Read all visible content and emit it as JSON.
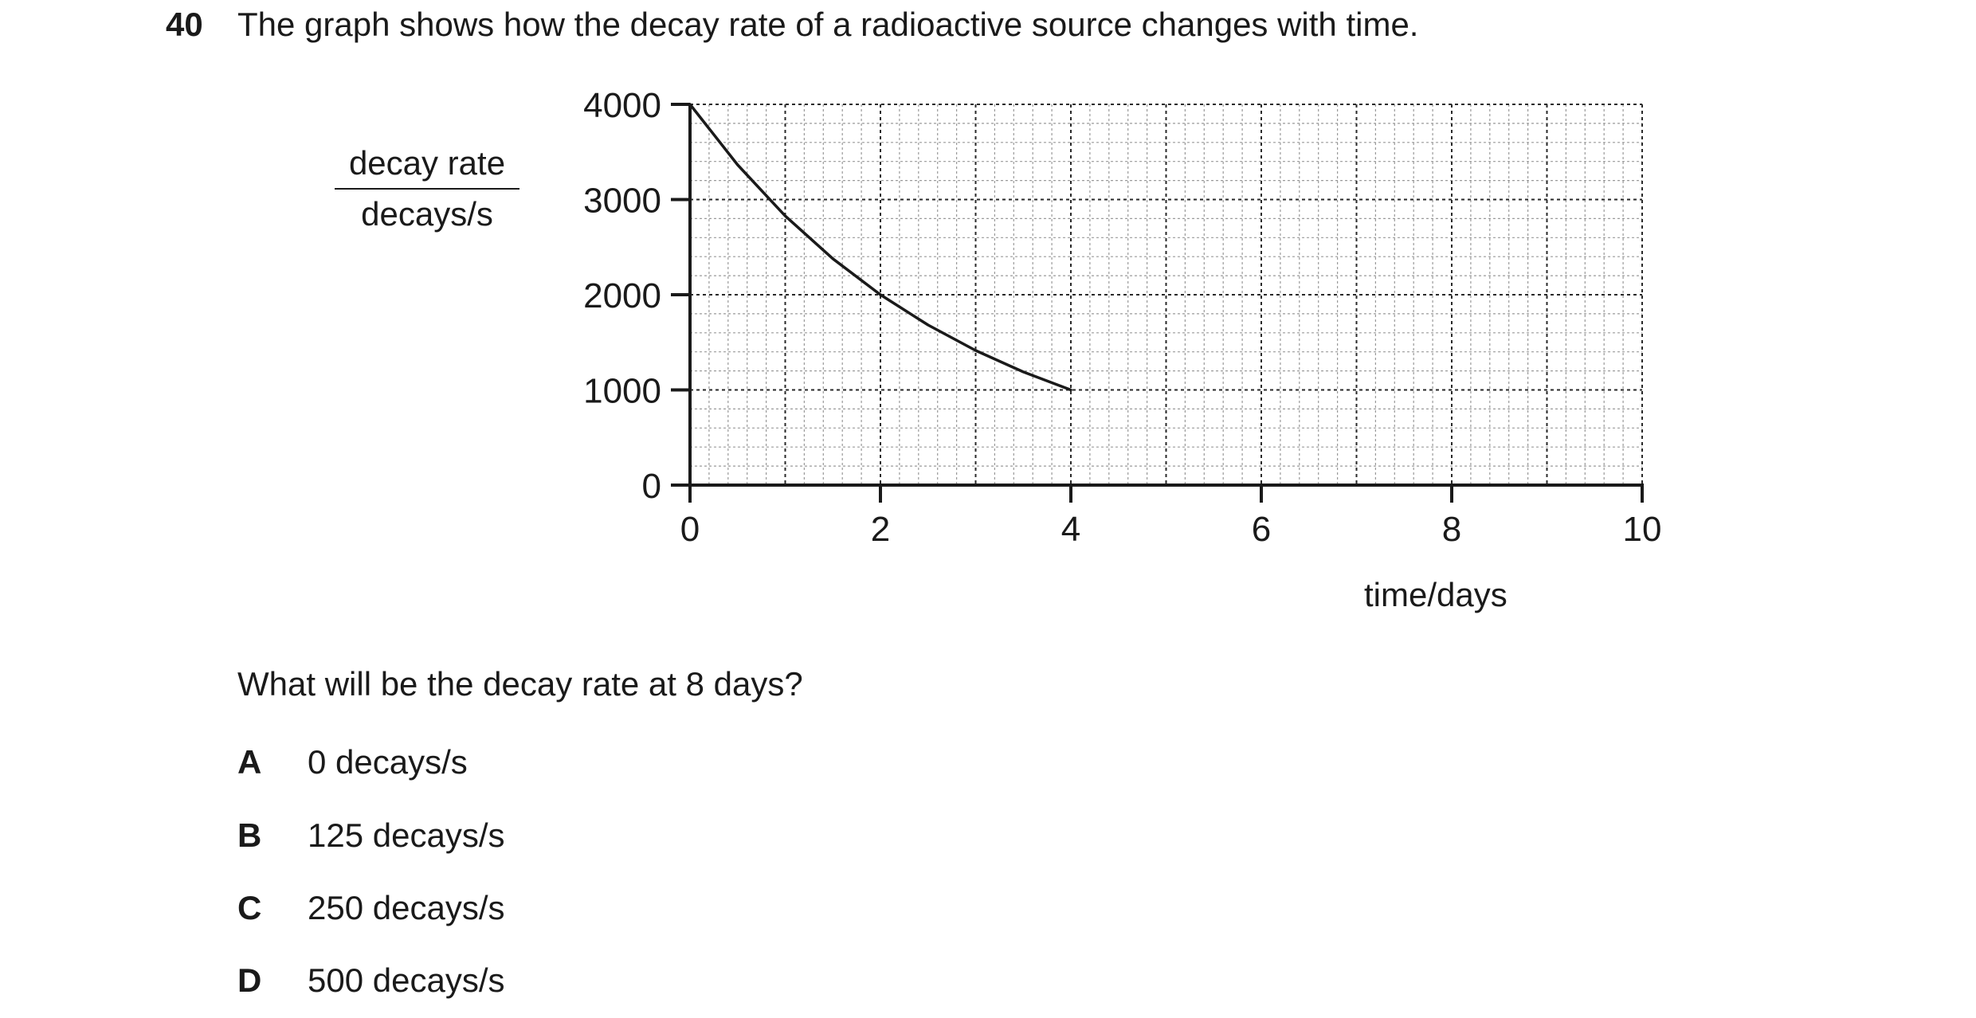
{
  "question": {
    "number": "40",
    "text": "The graph shows how the decay rate of a radioactive source changes with time.",
    "prompt": "What will be the decay rate at 8 days?",
    "options": [
      {
        "letter": "A",
        "text": "0 decays/s"
      },
      {
        "letter": "B",
        "text": "125 decays/s"
      },
      {
        "letter": "C",
        "text": "250 decays/s"
      },
      {
        "letter": "D",
        "text": "500 decays/s"
      }
    ]
  },
  "chart_data": {
    "type": "line",
    "xlabel": "time/days",
    "ylabel_top": "decay rate",
    "ylabel_bottom": "decays/s",
    "xlim": [
      0,
      10
    ],
    "ylim": [
      0,
      4000
    ],
    "x_ticks": [
      0,
      2,
      4,
      6,
      8,
      10
    ],
    "y_ticks": [
      0,
      1000,
      2000,
      3000,
      4000
    ],
    "grid": true,
    "series": [
      {
        "x": [
          0,
          0.5,
          1,
          1.5,
          2,
          2.5,
          3,
          3.5,
          4
        ],
        "y": [
          4000,
          3364,
          2828,
          2378,
          2000,
          1682,
          1414,
          1189,
          1000
        ]
      }
    ]
  }
}
